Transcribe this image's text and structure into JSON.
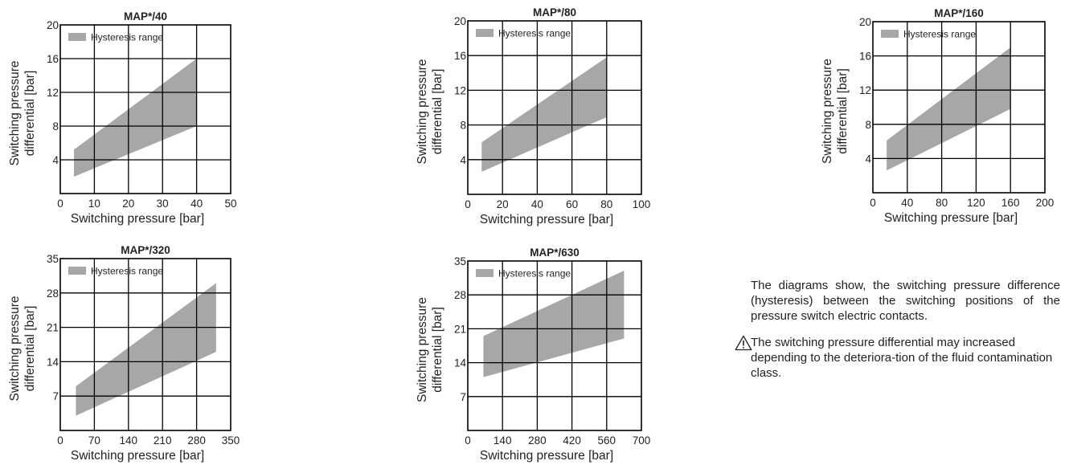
{
  "notes": {
    "description": "The diagrams show, the switching pressure difference (hysteresis) between the switching positions of the pressure switch electric contacts.",
    "warning": "The switching pressure differential may increased depending to the deteriora-tion of the fluid contamination class.",
    "warning_icon": "warning-triangle-icon"
  },
  "colors": {
    "band": "#a7a7a9",
    "grid": "#000000",
    "text": "#222222"
  },
  "chart_data": [
    {
      "type": "area",
      "title": "MAP*/40",
      "xlabel": "Switching pressure [bar]",
      "ylabel": [
        "Switching pressure",
        "differential [bar]"
      ],
      "legend": "Hysteresis range",
      "legend_position": "top-left",
      "grid": true,
      "xlim": [
        0,
        50
      ],
      "ylim": [
        0,
        20
      ],
      "xticks": [
        0,
        10,
        20,
        30,
        40,
        50
      ],
      "yticks": [
        4,
        8,
        12,
        16,
        20
      ],
      "series": [
        {
          "name": "Hysteresis range",
          "x": [
            4,
            40
          ],
          "lower": [
            2.0,
            8.0
          ],
          "upper": [
            5.2,
            16.0
          ]
        }
      ]
    },
    {
      "type": "area",
      "title": "MAP*/80",
      "xlabel": "Switching pressure [bar]",
      "ylabel": [
        "Switching pressure",
        "differential [bar]"
      ],
      "legend": "Hysteresis range",
      "legend_position": "top-left",
      "grid": true,
      "xlim": [
        0,
        100
      ],
      "ylim": [
        0,
        20
      ],
      "xticks": [
        0,
        20,
        40,
        60,
        80,
        100
      ],
      "yticks": [
        4,
        8,
        12,
        16,
        20
      ],
      "series": [
        {
          "name": "Hysteresis range",
          "x": [
            8,
            80
          ],
          "lower": [
            2.6,
            8.9
          ],
          "upper": [
            6.0,
            15.8
          ]
        }
      ]
    },
    {
      "type": "area",
      "title": "MAP*/160",
      "xlabel": "Switching pressure [bar]",
      "ylabel": [
        "Switching pressure",
        "differential [bar]"
      ],
      "legend": "Hysteresis range",
      "legend_position": "top-left",
      "grid": true,
      "xlim": [
        0,
        200
      ],
      "ylim": [
        0,
        20
      ],
      "xticks": [
        0,
        40,
        80,
        120,
        160,
        200
      ],
      "yticks": [
        4,
        8,
        12,
        16,
        20
      ],
      "series": [
        {
          "name": "Hysteresis range",
          "x": [
            16,
            160
          ],
          "lower": [
            2.6,
            9.8
          ],
          "upper": [
            6.1,
            17.0
          ]
        }
      ]
    },
    {
      "type": "area",
      "title": "MAP*/320",
      "xlabel": "Switching pressure [bar]",
      "ylabel": [
        "Switching pressure",
        "differential [bar]"
      ],
      "legend": "Hysteresis range",
      "legend_position": "top-left",
      "grid": true,
      "xlim": [
        0,
        350
      ],
      "ylim": [
        0,
        35
      ],
      "xticks": [
        0,
        70,
        140,
        210,
        280,
        350
      ],
      "yticks": [
        7,
        14,
        21,
        28,
        35
      ],
      "series": [
        {
          "name": "Hysteresis range",
          "x": [
            32,
            320
          ],
          "lower": [
            3.0,
            16.0
          ],
          "upper": [
            9.0,
            30.0
          ]
        }
      ]
    },
    {
      "type": "area",
      "title": "MAP*/630",
      "xlabel": "Switching pressure [bar]",
      "ylabel": [
        "Switching pressure",
        "differential [bar]"
      ],
      "legend": "Hysteresis range",
      "legend_position": "top-left",
      "grid": true,
      "xlim": [
        0,
        700
      ],
      "ylim": [
        0,
        35
      ],
      "xticks": [
        0,
        140,
        280,
        420,
        560,
        700
      ],
      "yticks": [
        7,
        14,
        21,
        28,
        35
      ],
      "series": [
        {
          "name": "Hysteresis range",
          "x": [
            63,
            630
          ],
          "lower": [
            11.0,
            19.0
          ],
          "upper": [
            19.5,
            33.0
          ]
        }
      ]
    }
  ]
}
